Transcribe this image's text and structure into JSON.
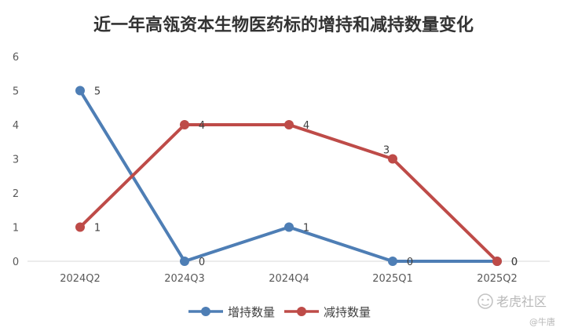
{
  "chart_data": {
    "type": "line",
    "title": "近一年高瓴资本生物医药标的增持和减持数量变化",
    "categories": [
      "2024Q2",
      "2024Q3",
      "2024Q4",
      "2025Q1",
      "2025Q2"
    ],
    "series": [
      {
        "name": "增持数量",
        "values": [
          5,
          0,
          1,
          0,
          0
        ],
        "color": "#4e7eb5"
      },
      {
        "name": "减持数量",
        "values": [
          1,
          4,
          4,
          3,
          0
        ],
        "color": "#be4b48"
      }
    ],
    "xlabel": "",
    "ylabel": "",
    "ylim": [
      0,
      6
    ],
    "yticks": [
      0,
      1,
      2,
      3,
      4,
      5,
      6
    ],
    "grid": false,
    "legend": "bottom",
    "data_labels": true
  },
  "watermark": {
    "main": "老虎社区",
    "sub": "@牛唐"
  }
}
